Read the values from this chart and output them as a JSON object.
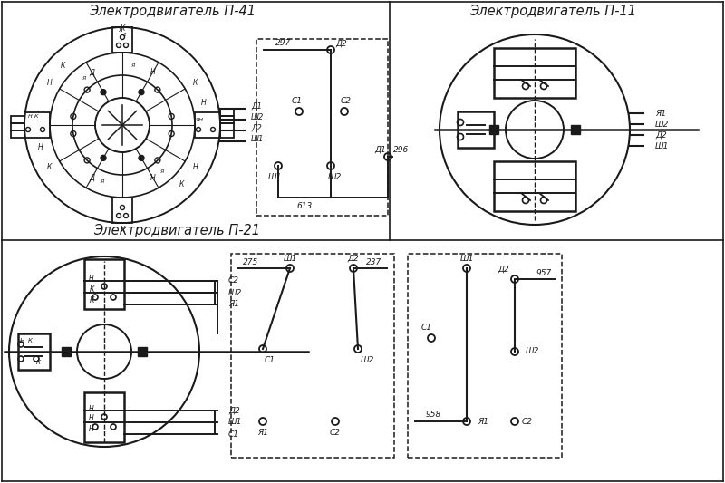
{
  "title_p41": "Электродвигатель П-41",
  "title_p11": "Электродвигатель П-11",
  "title_p21": "Электродвигатель П-21",
  "bg_color": "#ffffff",
  "lc": "#1a1a1a"
}
